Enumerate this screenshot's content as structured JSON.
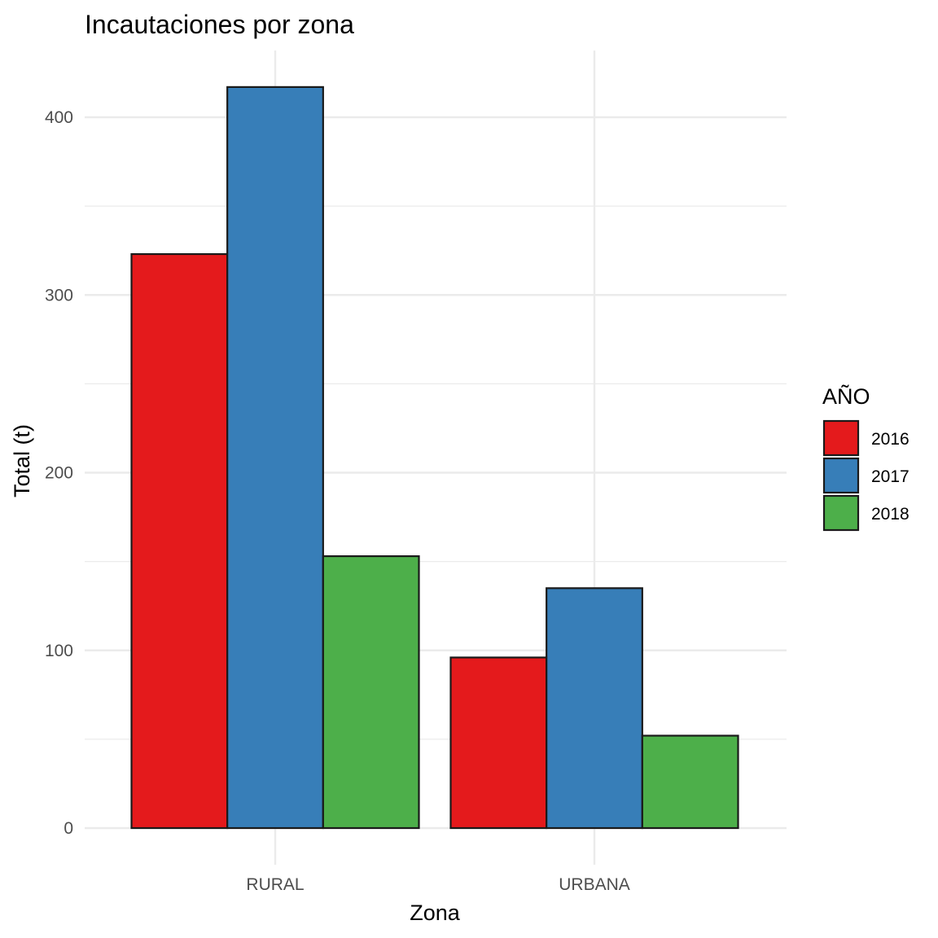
{
  "chart_data": {
    "type": "bar",
    "title": "Incautaciones por zona",
    "xlabel": "Zona",
    "ylabel": "Total (t)",
    "categories": [
      "RURAL",
      "URBANA"
    ],
    "series": [
      {
        "name": "2016",
        "values": [
          323,
          96
        ],
        "color": "#E41A1C"
      },
      {
        "name": "2017",
        "values": [
          417,
          135
        ],
        "color": "#377EB8"
      },
      {
        "name": "2018",
        "values": [
          153,
          52
        ],
        "color": "#4DAF4A"
      }
    ],
    "ylim": [
      0,
      417
    ],
    "yticks": [
      0,
      100,
      200,
      300,
      400
    ],
    "grid": true,
    "legend": {
      "title": "AÑO",
      "position": "right"
    }
  }
}
